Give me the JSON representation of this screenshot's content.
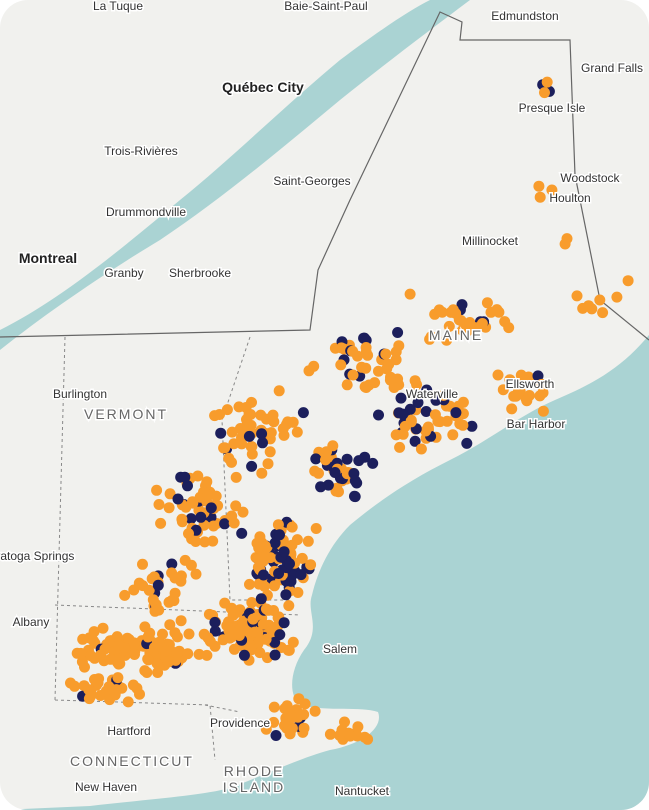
{
  "map": {
    "places": [
      {
        "name": "La Tuque"
      },
      {
        "name": "Baie-Saint-Paul"
      },
      {
        "name": "Edmundston"
      },
      {
        "name": "Grand Falls"
      },
      {
        "name": "Québec City"
      },
      {
        "name": "Presque Isle"
      },
      {
        "name": "Trois-Rivières"
      },
      {
        "name": "Saint-Georges"
      },
      {
        "name": "Woodstock"
      },
      {
        "name": "Houlton"
      },
      {
        "name": "Drummondville"
      },
      {
        "name": "Millinocket"
      },
      {
        "name": "Montreal"
      },
      {
        "name": "Granby"
      },
      {
        "name": "Sherbrooke"
      },
      {
        "name": "Burlington"
      },
      {
        "name": "Waterville"
      },
      {
        "name": "Ellsworth"
      },
      {
        "name": "Bar Harbor"
      },
      {
        "name": "Saratoga Springs"
      },
      {
        "name": "Albany"
      },
      {
        "name": "Salem"
      },
      {
        "name": "Hartford"
      },
      {
        "name": "Providence"
      },
      {
        "name": "New Haven"
      },
      {
        "name": "Nantucket"
      }
    ],
    "regions": [
      {
        "name": "VERMONT"
      },
      {
        "name": "MAINE"
      },
      {
        "name": "CONNECTICUT"
      },
      {
        "name": "RHODE"
      },
      {
        "name": "ISLAND"
      }
    ]
  }
}
